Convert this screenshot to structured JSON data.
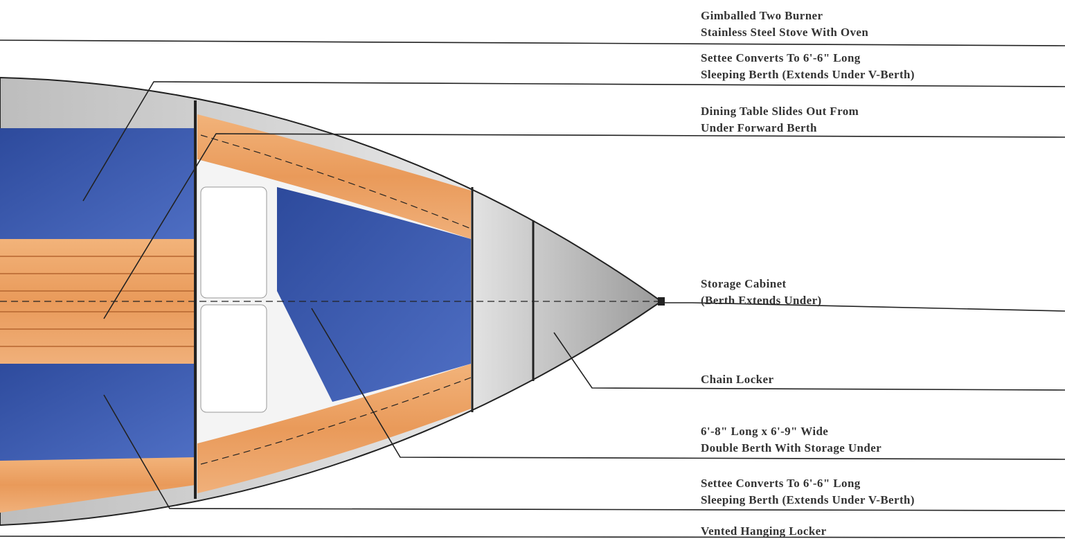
{
  "callouts": [
    {
      "lines": [
        "Gimballed Two Burner",
        "Stainless Steel Stove With Oven"
      ]
    },
    {
      "lines": [
        "Settee Converts To 6'-6\" Long",
        "Sleeping Berth (Extends Under V-Berth)"
      ]
    },
    {
      "lines": [
        "Dining Table Slides Out From",
        "Under Forward Berth"
      ]
    },
    {
      "lines": [
        "Storage Cabinet",
        "(Berth Extends Under)"
      ]
    },
    {
      "lines": [
        "Chain Locker"
      ]
    },
    {
      "lines": [
        "6'-8\" Long x 6'-9\" Wide",
        "Double Berth With Storage Under"
      ]
    },
    {
      "lines": [
        "Settee Converts To 6'-6\" Long",
        "Sleeping Berth (Extends Under V-Berth)"
      ]
    },
    {
      "lines": [
        "Vented Hanging Locker"
      ]
    }
  ]
}
